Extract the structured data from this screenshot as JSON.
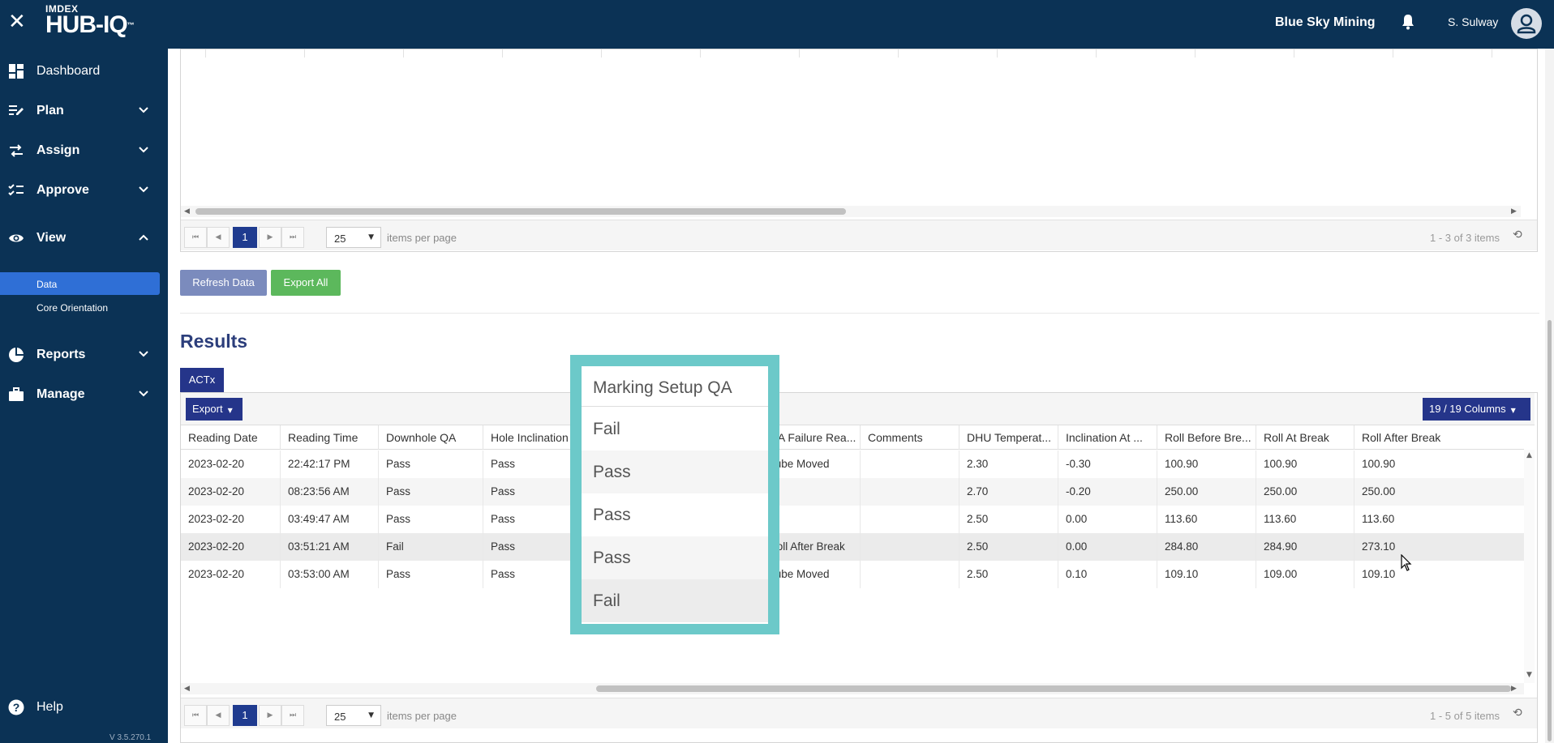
{
  "header": {
    "close_icon": "close-icon",
    "logo_top": "IMDEX",
    "logo_main": "HUB-IQ",
    "logo_tm": "™",
    "company": "Blue Sky Mining",
    "username": "S. Sulway"
  },
  "sidebar": {
    "items": [
      {
        "label": "Dashboard",
        "icon": "dashboard-icon"
      },
      {
        "label": "Plan",
        "icon": "plan-icon"
      },
      {
        "label": "Assign",
        "icon": "assign-icon"
      },
      {
        "label": "Approve",
        "icon": "approve-icon"
      },
      {
        "label": "View",
        "icon": "eye-icon"
      },
      {
        "label": "Reports",
        "icon": "pie-chart-icon"
      },
      {
        "label": "Manage",
        "icon": "briefcase-icon"
      }
    ],
    "sub_items": [
      "Data",
      "Core Orientation"
    ],
    "help": "Help",
    "version": "V 3.5.270.1"
  },
  "top_grid": {
    "page": "1",
    "page_size": "25",
    "items_per_page": "items per page",
    "info": "1 - 3 of 3 items"
  },
  "actions": {
    "refresh": "Refresh Data",
    "export_all": "Export All"
  },
  "results": {
    "title": "Results",
    "tab": "ACTx",
    "export": "Export",
    "columns": "19 / 19 Columns",
    "headers": [
      "Reading Date",
      "Reading Time",
      "Downhole QA",
      "Hole Inclination",
      "QA",
      "QA Failure Rea...",
      "Comments",
      "DHU Temperat...",
      "Inclination At ...",
      "Roll Before Bre...",
      "Roll At Break",
      "Roll After Break"
    ],
    "rows": [
      [
        "2023-02-20",
        "22:42:17 PM",
        "Pass",
        "Pass",
        "",
        "Tube Moved",
        "",
        "2.30",
        "-0.30",
        "100.90",
        "100.90",
        "100.90"
      ],
      [
        "2023-02-20",
        "08:23:56 AM",
        "Pass",
        "Pass",
        "",
        "",
        "",
        "2.70",
        "-0.20",
        "250.00",
        "250.00",
        "250.00"
      ],
      [
        "2023-02-20",
        "03:49:47 AM",
        "Pass",
        "Pass",
        "",
        "",
        "",
        "2.50",
        "0.00",
        "113.60",
        "113.60",
        "113.60"
      ],
      [
        "2023-02-20",
        "03:51:21 AM",
        "Fail",
        "Pass",
        "",
        "Roll After Break",
        "",
        "2.50",
        "0.00",
        "284.80",
        "284.90",
        "273.10"
      ],
      [
        "2023-02-20",
        "03:53:00 AM",
        "Pass",
        "Pass",
        "",
        "Tube Moved",
        "",
        "2.50",
        "0.10",
        "109.10",
        "109.00",
        "109.10"
      ]
    ],
    "page": "1",
    "page_size": "25",
    "items_per_page": "items per page",
    "info": "1 - 5 of 5 items"
  },
  "popup": {
    "title": "Marking Setup QA",
    "values": [
      "Fail",
      "Pass",
      "Pass",
      "Pass",
      "Fail"
    ]
  },
  "colors": {
    "nav": "#0b3255",
    "accent": "#25358a",
    "active": "#2f6fd6",
    "export_all": "#5cb85c",
    "popup_border": "#6cc9c9"
  }
}
